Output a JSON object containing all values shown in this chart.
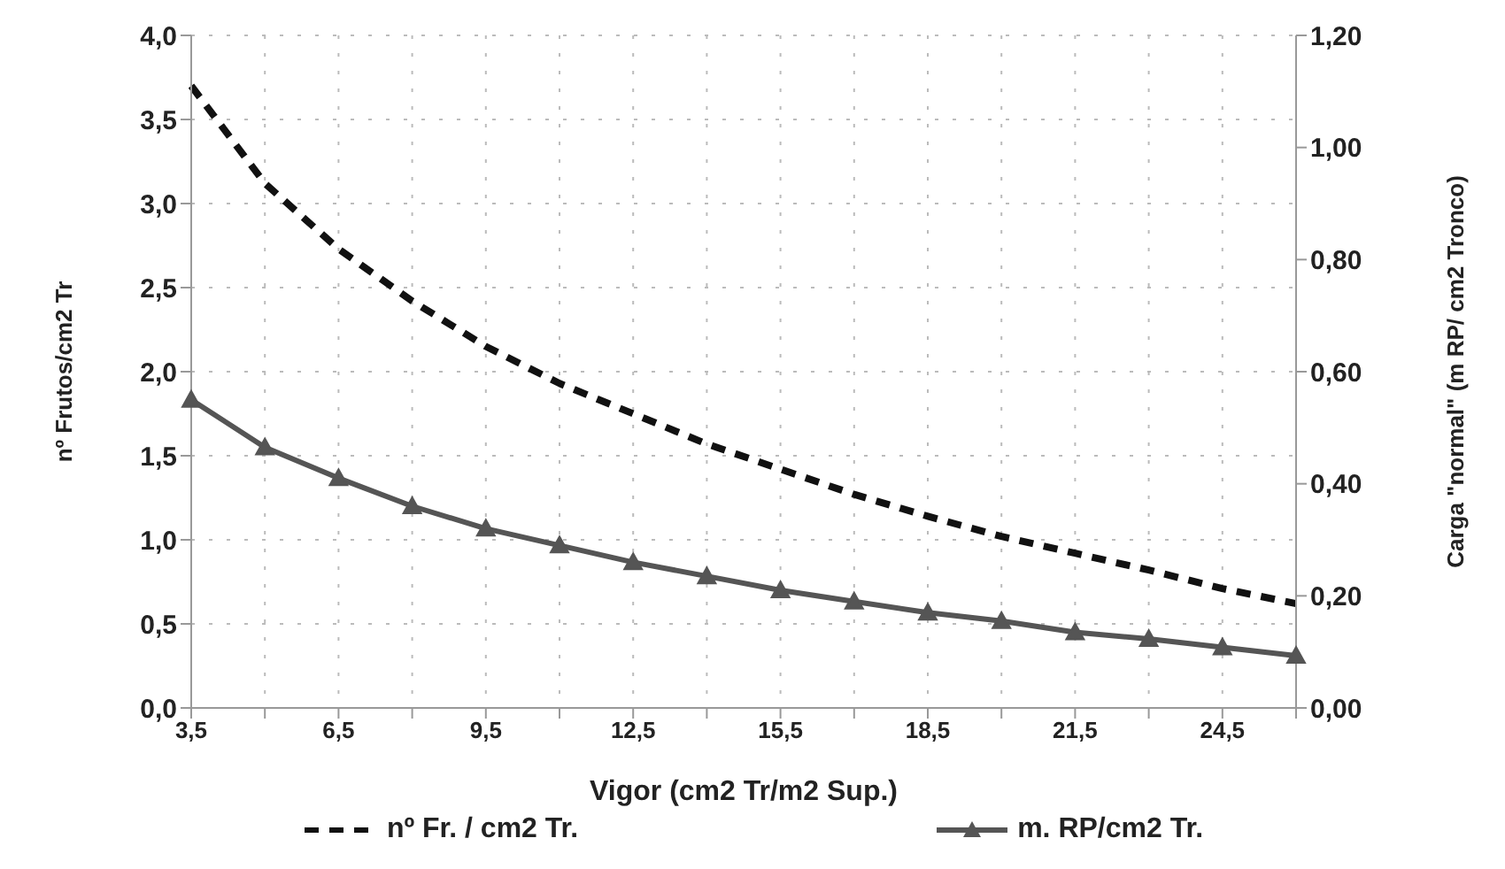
{
  "chart_data": {
    "type": "line",
    "xlabel": "Vigor (cm2 Tr/m2 Sup.)",
    "ylabel": "nº Frutos/cm2 Tr",
    "y2label": "Carga \"normal\" (m RP/ cm2 Tronco)",
    "categories": [
      "3,5",
      null,
      "6,5",
      null,
      "9,5",
      null,
      "12,5",
      null,
      "15,5",
      null,
      "18,5",
      null,
      "21,5",
      null,
      "24,5",
      null
    ],
    "series": [
      {
        "name": "nº Fr. / cm2 Tr.",
        "color": "#111111",
        "line_style": "dashed",
        "marker": "none",
        "values": [
          3.7,
          3.12,
          2.73,
          2.42,
          2.15,
          1.93,
          1.75,
          1.57,
          1.42,
          1.27,
          1.14,
          1.02,
          0.92,
          0.82,
          0.71,
          0.62
        ]
      },
      {
        "name": "m. RP/cm2 Tr.",
        "color": "#555555",
        "line_style": "solid",
        "marker": "triangle",
        "axis": "y2",
        "values": [
          0.55,
          0.465,
          0.41,
          0.36,
          0.32,
          0.29,
          0.26,
          0.235,
          0.21,
          0.19,
          0.17,
          0.155,
          0.135,
          0.123,
          0.108,
          0.093
        ]
      }
    ],
    "ylim": [
      0,
      4
    ],
    "yticks": [
      {
        "value": 0,
        "label": "0,0"
      },
      {
        "value": 0.5,
        "label": "0,5"
      },
      {
        "value": 1,
        "label": "1,0"
      },
      {
        "value": 1.5,
        "label": "1,5"
      },
      {
        "value": 2,
        "label": "2,0"
      },
      {
        "value": 2.5,
        "label": "2,5"
      },
      {
        "value": 3,
        "label": "3,0"
      },
      {
        "value": 3.5,
        "label": "3,5"
      },
      {
        "value": 4,
        "label": "4,0"
      }
    ],
    "y2lim": [
      0,
      1.2
    ],
    "y2ticks": [
      {
        "value": 0,
        "label": "0,00"
      },
      {
        "value": 0.2,
        "label": "0,20"
      },
      {
        "value": 0.4,
        "label": "0,40"
      },
      {
        "value": 0.6,
        "label": "0,60"
      },
      {
        "value": 0.8,
        "label": "0,80"
      },
      {
        "value": 1,
        "label": "1,00"
      },
      {
        "value": 1.2,
        "label": "1,20"
      }
    ],
    "grid": true,
    "legend": "bottom"
  }
}
